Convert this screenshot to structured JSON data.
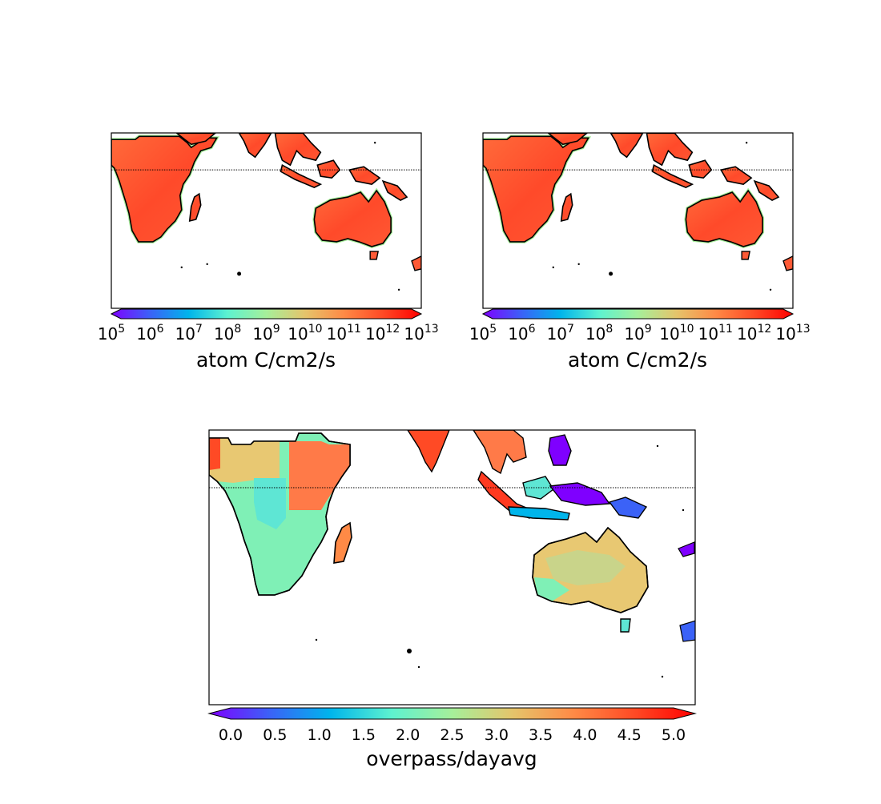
{
  "colormap": [
    "#7f00ff",
    "#3b62f7",
    "#00b5eb",
    "#5df2d0",
    "#a6ef9a",
    "#e5c46b",
    "#ff8a46",
    "#ff4a25",
    "#ff0000"
  ],
  "land_color": "#ff5a36",
  "panels": [
    {
      "name": "panel-top-left",
      "colorbar_label": "atom C/cm2/s",
      "colorbar_scale": "log",
      "tick_labels": [
        {
          "base": "10",
          "exp": "5"
        },
        {
          "base": "10",
          "exp": "6"
        },
        {
          "base": "10",
          "exp": "7"
        },
        {
          "base": "10",
          "exp": "8"
        },
        {
          "base": "10",
          "exp": "9"
        },
        {
          "base": "10",
          "exp": "10"
        },
        {
          "base": "10",
          "exp": "11"
        },
        {
          "base": "10",
          "exp": "12"
        },
        {
          "base": "10",
          "exp": "13"
        }
      ]
    },
    {
      "name": "panel-top-right",
      "colorbar_label": "atom C/cm2/s",
      "colorbar_scale": "log",
      "tick_labels": [
        {
          "base": "10",
          "exp": "5"
        },
        {
          "base": "10",
          "exp": "6"
        },
        {
          "base": "10",
          "exp": "7"
        },
        {
          "base": "10",
          "exp": "8"
        },
        {
          "base": "10",
          "exp": "9"
        },
        {
          "base": "10",
          "exp": "10"
        },
        {
          "base": "10",
          "exp": "11"
        },
        {
          "base": "10",
          "exp": "12"
        },
        {
          "base": "10",
          "exp": "13"
        }
      ]
    },
    {
      "name": "panel-bottom",
      "colorbar_label": "overpass/dayavg",
      "colorbar_scale": "linear",
      "colorbar_range": [
        0,
        5
      ],
      "tick_values": [
        "0.0",
        "0.5",
        "1.0",
        "1.5",
        "2.0",
        "2.5",
        "3.0",
        "3.5",
        "4.0",
        "4.5",
        "5.0"
      ]
    }
  ]
}
